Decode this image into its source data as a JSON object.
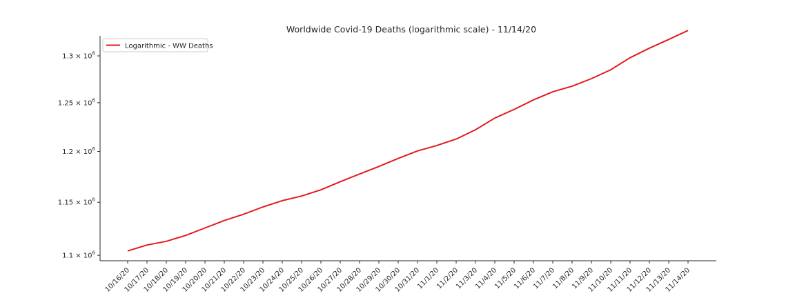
{
  "chart_data": {
    "type": "line",
    "title": "Worldwide Covid-19 Deaths (logarithmic scale) - 11/14/20",
    "xlabel": "",
    "ylabel": "",
    "yscale": "log",
    "ylim": [
      1095000,
      1322000
    ],
    "grid": false,
    "legend_position": "top-left",
    "y_ticks": [
      {
        "value": 1100000,
        "mantissa": "1.1",
        "exponent": "6"
      },
      {
        "value": 1150000,
        "mantissa": "1.15",
        "exponent": "6"
      },
      {
        "value": 1200000,
        "mantissa": "1.2",
        "exponent": "6"
      },
      {
        "value": 1250000,
        "mantissa": "1.25",
        "exponent": "6"
      },
      {
        "value": 1300000,
        "mantissa": "1.3",
        "exponent": "6"
      }
    ],
    "categories": [
      "10/16/20",
      "10/17/20",
      "10/18/20",
      "10/19/20",
      "10/20/20",
      "10/21/20",
      "10/22/20",
      "10/23/20",
      "10/24/20",
      "10/25/20",
      "10/26/20",
      "10/27/20",
      "10/28/20",
      "10/29/20",
      "10/30/20",
      "10/31/20",
      "11/1/20",
      "11/2/20",
      "11/3/20",
      "11/4/20",
      "11/5/20",
      "11/6/20",
      "11/7/20",
      "11/8/20",
      "11/9/20",
      "11/10/20",
      "11/11/20",
      "11/12/20",
      "11/13/20",
      "11/14/20"
    ],
    "series": [
      {
        "name": "Logarithmic - WW Deaths",
        "color": "#e31a1c",
        "values": [
          1104000,
          1109500,
          1113000,
          1118500,
          1125500,
          1132500,
          1138500,
          1145500,
          1151500,
          1156000,
          1162000,
          1170000,
          1177500,
          1185000,
          1193000,
          1200500,
          1206000,
          1212500,
          1222000,
          1234000,
          1243000,
          1253000,
          1261500,
          1267500,
          1275500,
          1285000,
          1298000,
          1308500,
          1318000,
          1328000
        ]
      }
    ]
  }
}
